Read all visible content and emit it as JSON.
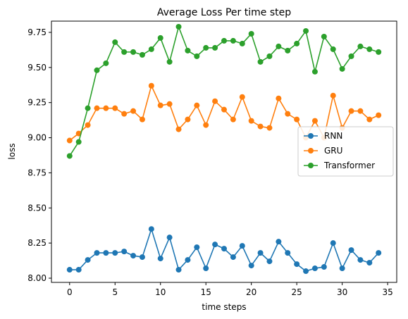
{
  "chart_data": {
    "type": "line",
    "title": "Average Loss Per time step",
    "xlabel": "time steps",
    "ylabel": "loss",
    "xlim": [
      -2.0,
      36.0
    ],
    "ylim": [
      7.97,
      9.83
    ],
    "x_ticks": [
      0,
      5,
      10,
      15,
      20,
      25,
      30,
      35
    ],
    "x_tick_labels": [
      "0",
      "5",
      "10",
      "15",
      "20",
      "25",
      "30",
      "35"
    ],
    "y_ticks": [
      8.0,
      8.25,
      8.5,
      8.75,
      9.0,
      9.25,
      9.5,
      9.75
    ],
    "y_tick_labels": [
      "8.00",
      "8.25",
      "8.50",
      "8.75",
      "9.00",
      "9.25",
      "9.50",
      "9.75"
    ],
    "grid": false,
    "legend_position": "center-right",
    "x": [
      0,
      1,
      2,
      3,
      4,
      5,
      6,
      7,
      8,
      9,
      10,
      11,
      12,
      13,
      14,
      15,
      16,
      17,
      18,
      19,
      20,
      21,
      22,
      23,
      24,
      25,
      26,
      27,
      28,
      29,
      30,
      31,
      32,
      33,
      34
    ],
    "series": [
      {
        "name": "RNN",
        "color": "#1f77b4",
        "values": [
          8.06,
          8.06,
          8.13,
          8.18,
          8.18,
          8.18,
          8.19,
          8.16,
          8.15,
          8.35,
          8.14,
          8.29,
          8.06,
          8.13,
          8.22,
          8.07,
          8.24,
          8.21,
          8.15,
          8.23,
          8.09,
          8.18,
          8.12,
          8.26,
          8.18,
          8.1,
          8.05,
          8.07,
          8.08,
          8.25,
          8.07,
          8.2,
          8.13,
          8.11,
          8.18
        ]
      },
      {
        "name": "GRU",
        "color": "#ff7f0e",
        "values": [
          8.98,
          9.03,
          9.09,
          9.21,
          9.21,
          9.21,
          9.17,
          9.19,
          9.13,
          9.37,
          9.23,
          9.24,
          9.06,
          9.13,
          9.23,
          9.09,
          9.26,
          9.2,
          9.13,
          9.29,
          9.12,
          9.08,
          9.07,
          9.28,
          9.17,
          9.13,
          9.0,
          9.12,
          9.0,
          9.3,
          9.07,
          9.19,
          9.19,
          9.13,
          9.16
        ]
      },
      {
        "name": "Transformer",
        "color": "#2ca02c",
        "values": [
          8.87,
          8.97,
          9.21,
          9.48,
          9.53,
          9.68,
          9.61,
          9.61,
          9.59,
          9.63,
          9.71,
          9.54,
          9.79,
          9.62,
          9.58,
          9.64,
          9.64,
          9.69,
          9.69,
          9.67,
          9.74,
          9.54,
          9.58,
          9.65,
          9.62,
          9.67,
          9.76,
          9.47,
          9.72,
          9.63,
          9.49,
          9.58,
          9.65,
          9.63,
          9.61
        ]
      }
    ]
  }
}
